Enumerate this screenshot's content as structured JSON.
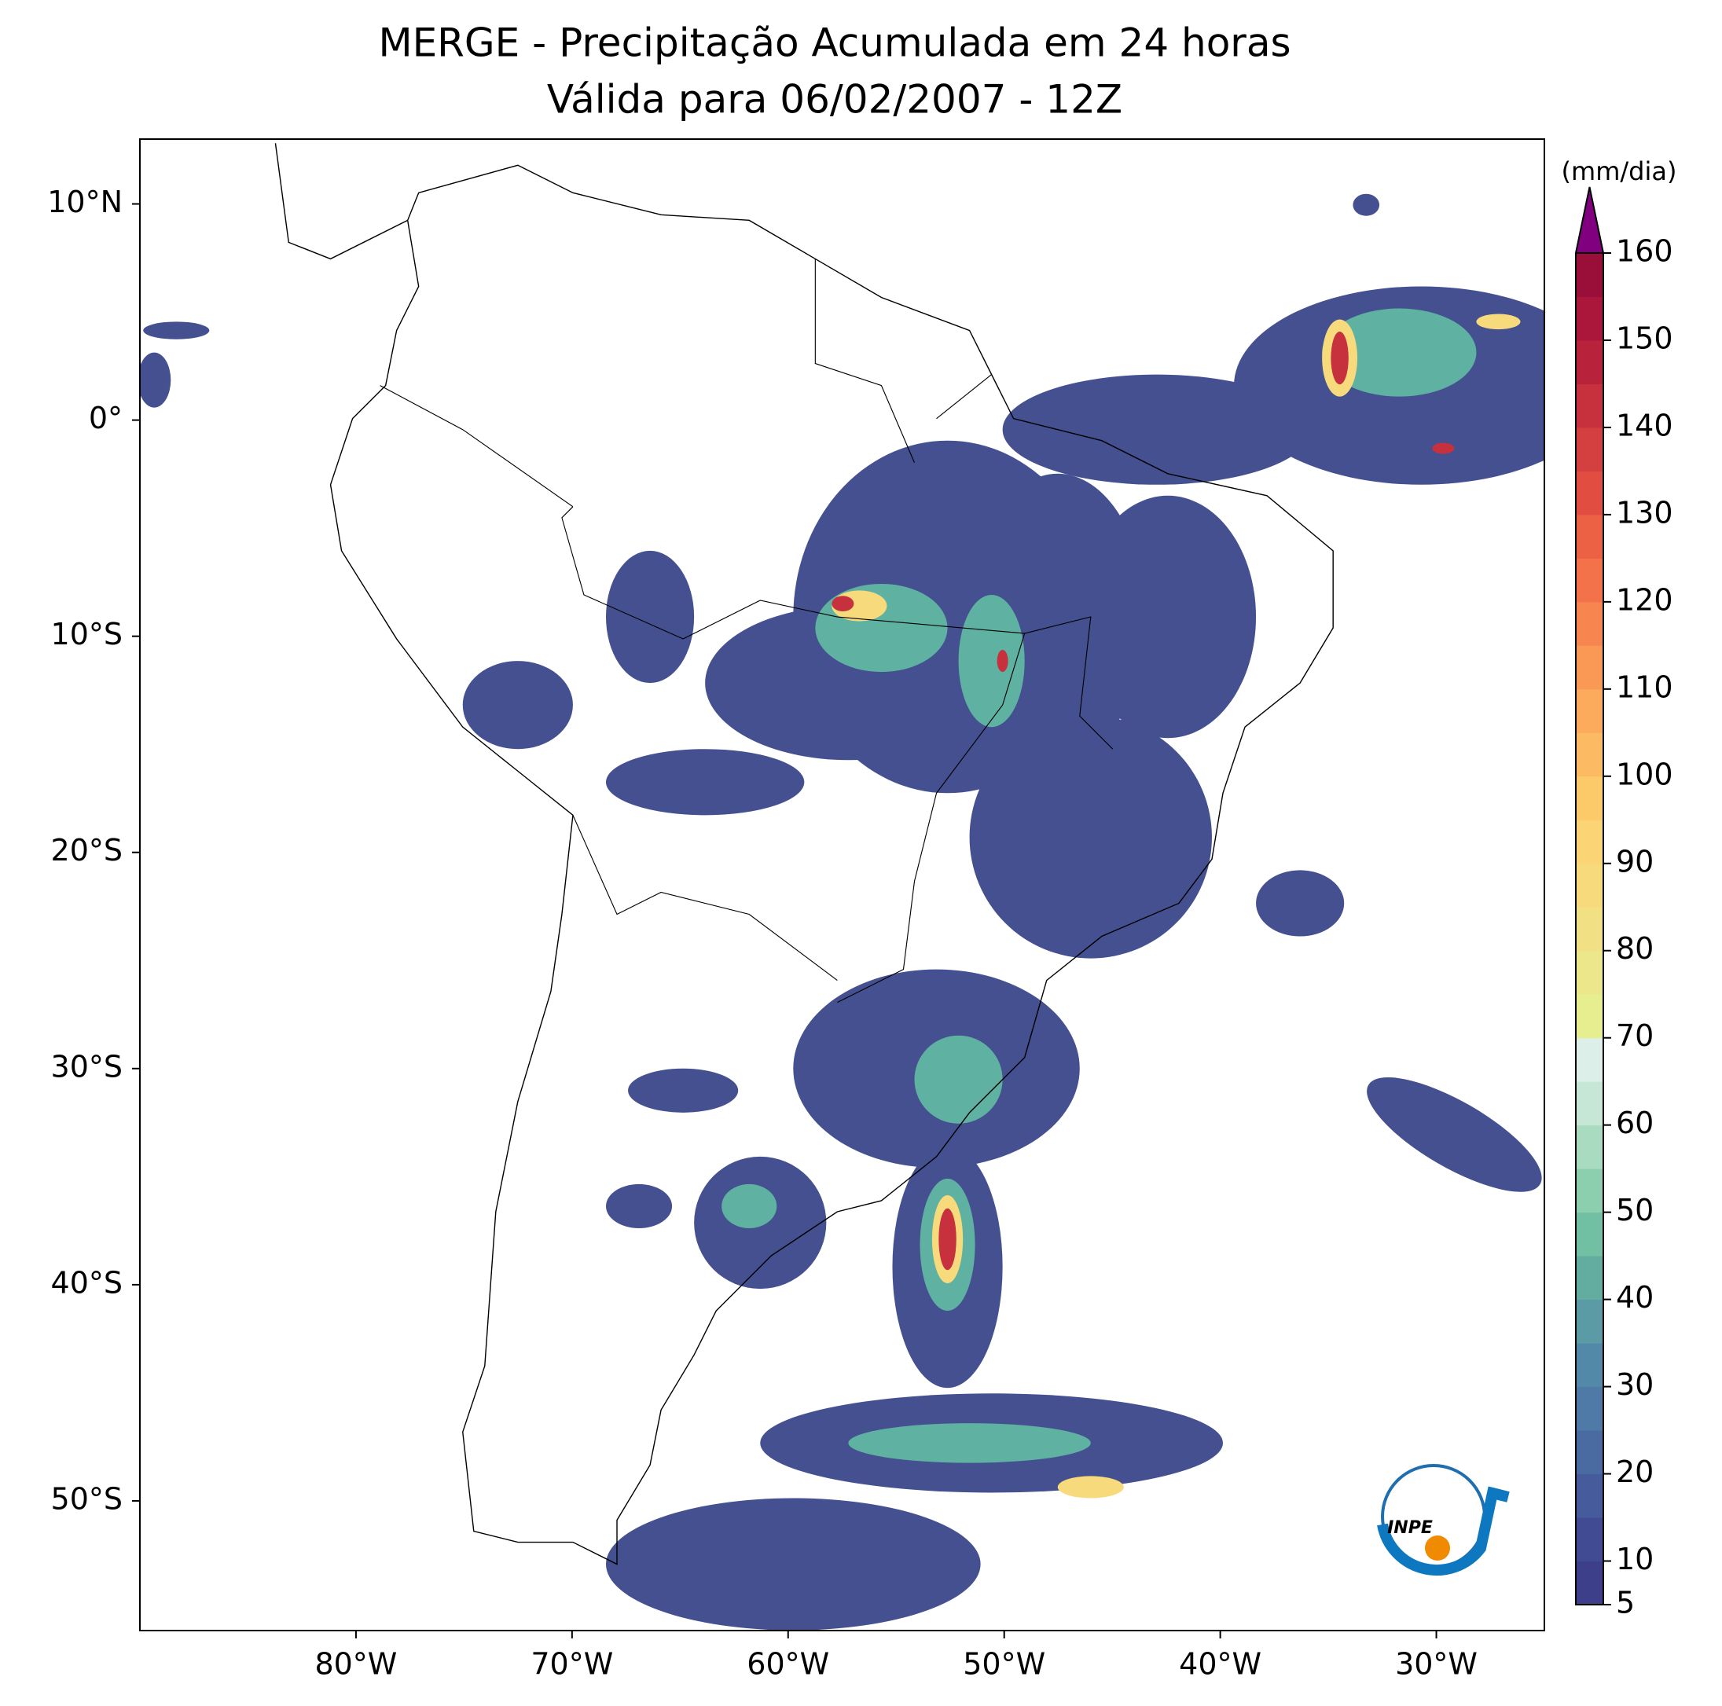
{
  "chart_data": {
    "type": "map",
    "title": "MERGE - Precipitação Acumulada em 24 horas",
    "subtitle": "Válida para 06/02/2007 - 12Z",
    "xlim": [
      -90,
      -25
    ],
    "ylim": [
      -56,
      13
    ],
    "xticks": [
      {
        "value": -80,
        "label": "80°W"
      },
      {
        "value": -70,
        "label": "70°W"
      },
      {
        "value": -60,
        "label": "60°W"
      },
      {
        "value": -50,
        "label": "50°W"
      },
      {
        "value": -40,
        "label": "40°W"
      },
      {
        "value": -30,
        "label": "30°W"
      }
    ],
    "yticks": [
      {
        "value": 10,
        "label": "10°N"
      },
      {
        "value": 0,
        "label": "0°"
      },
      {
        "value": -10,
        "label": "10°S"
      },
      {
        "value": -20,
        "label": "20°S"
      },
      {
        "value": -30,
        "label": "30°S"
      },
      {
        "value": -40,
        "label": "40°S"
      },
      {
        "value": -50,
        "label": "50°S"
      }
    ],
    "colorbar": {
      "label": "(mm/dia)",
      "levels": [
        5,
        10,
        15,
        20,
        25,
        30,
        35,
        40,
        45,
        50,
        55,
        60,
        65,
        70,
        75,
        80,
        85,
        90,
        95,
        100,
        105,
        110,
        115,
        120,
        125,
        130,
        135,
        140,
        145,
        150,
        155,
        160
      ],
      "colors": [
        "#3d3f8a",
        "#414b93",
        "#455b9b",
        "#4a6aa2",
        "#4f7aa7",
        "#5389a8",
        "#5a9ba6",
        "#62ad9f",
        "#72c0a4",
        "#8ccfae",
        "#a9dbc0",
        "#c6e6d6",
        "#dcefe9",
        "#e6ee90",
        "#ece78a",
        "#f2e184",
        "#f7da7c",
        "#fbd475",
        "#fdca6a",
        "#fcbb62",
        "#fcaa5c",
        "#fa9856",
        "#f78550",
        "#f3724a",
        "#ec6044",
        "#e14e41",
        "#d43f3f",
        "#c6313d",
        "#b8233b",
        "#aa173a",
        "#9a0e3a"
      ],
      "extend_color": "#800080",
      "ticks": [
        5,
        10,
        20,
        30,
        40,
        50,
        60,
        70,
        80,
        90,
        100,
        110,
        120,
        130,
        140,
        150,
        160
      ]
    },
    "logo_text": "INPE"
  }
}
